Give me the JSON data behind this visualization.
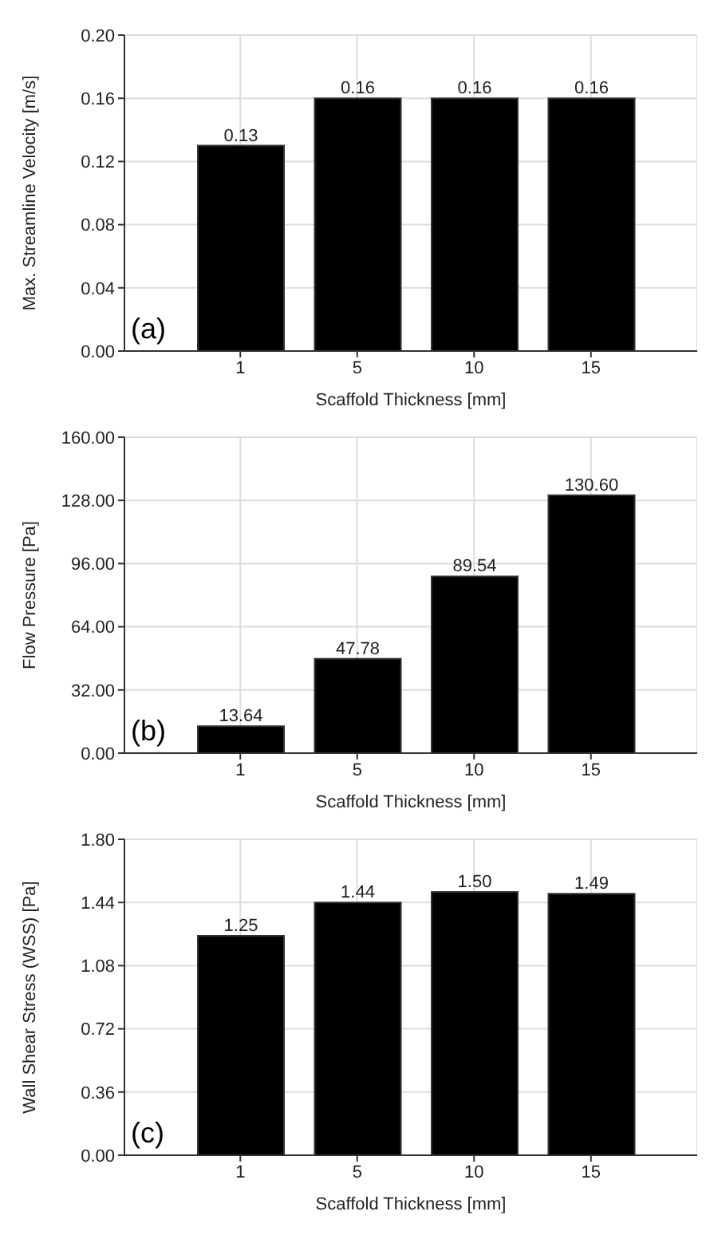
{
  "chart_data": [
    {
      "type": "bar",
      "categories": [
        "1",
        "5",
        "10",
        "15"
      ],
      "values": [
        0.13,
        0.16,
        0.16,
        0.16
      ],
      "value_labels": [
        "0.13",
        "0.16",
        "0.16",
        "0.16"
      ],
      "color": "#000000",
      "xlabel": "Scaffold Thickness [mm]",
      "ylabel": "Max. Streamline Velocity [m/s]",
      "ylim": [
        0,
        0.2
      ],
      "yticks": [
        {
          "value": 0,
          "label": "0.00"
        },
        0.04,
        0.08,
        0.12,
        0.16,
        {
          "value": 0.2,
          "label": "0.20"
        }
      ],
      "grid": true,
      "annotations": [
        "(a)"
      ]
    },
    {
      "type": "bar",
      "categories": [
        "1",
        "5",
        "10",
        "15"
      ],
      "values": [
        13.64,
        47.78,
        89.54,
        130.6
      ],
      "value_labels": [
        "13.64",
        "47.78",
        "89.54",
        "130.60"
      ],
      "color": "#000000",
      "xlabel": "Scaffold Thickness [mm]",
      "ylabel": "Flow Pressure [Pa]",
      "ylim": [
        0,
        160
      ],
      "yticks": [
        {
          "value": 0,
          "label": "0.00"
        },
        {
          "value": 32,
          "label": "32.00"
        },
        {
          "value": 64,
          "label": "64.00"
        },
        {
          "value": 96,
          "label": "96.00"
        },
        {
          "value": 128,
          "label": "128.00"
        },
        {
          "value": 160,
          "label": "160.00"
        }
      ],
      "grid": true,
      "annotations": [
        "(b)"
      ]
    },
    {
      "type": "bar",
      "categories": [
        "1",
        "5",
        "10",
        "15"
      ],
      "values": [
        1.25,
        1.44,
        1.5,
        1.49
      ],
      "value_labels": [
        "1.25",
        "1.44",
        "1.50",
        "1.49"
      ],
      "color": "#000000",
      "xlabel": "Scaffold Thickness [mm]",
      "ylabel": "Wall Shear Stress (WSS) [Pa]",
      "ylim": [
        0,
        1.8
      ],
      "yticks": [
        {
          "value": 0,
          "label": "0.00"
        },
        0.36,
        0.72,
        1.08,
        1.44,
        {
          "value": 1.8,
          "label": "1.80"
        }
      ],
      "grid": true,
      "annotations": [
        "(c)"
      ]
    }
  ]
}
